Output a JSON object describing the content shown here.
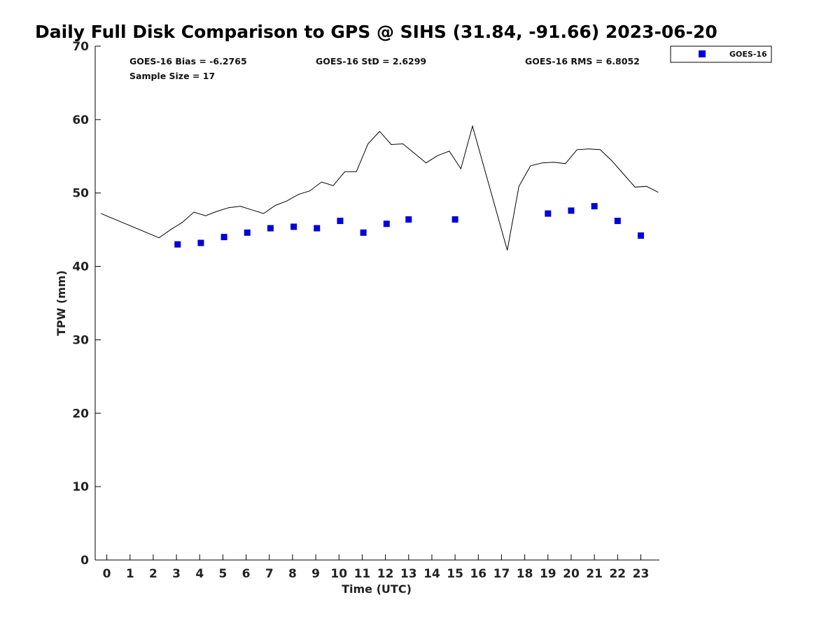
{
  "chart_data": {
    "type": "scatter",
    "title": "Daily Full Disk Comparison to GPS @ SIHS (31.84, -91.66) 2023-06-20",
    "xlabel": "Time (UTC)",
    "ylabel": "TPW (mm)",
    "xlim": [
      -0.5,
      23.8
    ],
    "ylim": [
      0,
      70
    ],
    "x_ticks": [
      0,
      1,
      2,
      3,
      4,
      5,
      6,
      7,
      8,
      9,
      10,
      11,
      12,
      13,
      14,
      15,
      16,
      17,
      18,
      19,
      20,
      21,
      22,
      23
    ],
    "y_ticks": [
      0,
      10,
      20,
      30,
      40,
      50,
      60,
      70
    ],
    "grid": false,
    "legend_position": "top-right-outside",
    "stats": {
      "bias": "GOES-16 Bias = -6.2765",
      "std": "GOES-16 StD = 2.6299",
      "rms": "GOES-16 RMS = 6.8052",
      "sample": "Sample Size = 17"
    },
    "series": [
      {
        "name": "GOES-16",
        "kind": "scatter",
        "marker": "square",
        "color": "#0000dd",
        "x": [
          3.05,
          4.05,
          5.05,
          6.05,
          7.05,
          8.05,
          9.05,
          10.05,
          11.05,
          12.05,
          13.0,
          15.0,
          19.0,
          20.0,
          21.0,
          22.0,
          23.0
        ],
        "y": [
          43.0,
          43.2,
          44.0,
          44.6,
          45.2,
          45.4,
          45.2,
          46.2,
          44.6,
          45.8,
          46.4,
          46.4,
          47.2,
          47.6,
          48.2,
          46.2,
          44.2
        ]
      },
      {
        "kind": "line",
        "color": "#000000",
        "x": [
          -0.25,
          2.25,
          2.75,
          3.25,
          3.75,
          4.25,
          4.75,
          5.25,
          5.75,
          6.25,
          6.75,
          7.25,
          7.75,
          8.25,
          8.75,
          9.25,
          9.75,
          10.25,
          10.75,
          11.25,
          11.75,
          12.25,
          12.75,
          13.25,
          13.75,
          14.25,
          14.75,
          15.25,
          15.75,
          17.25,
          17.75,
          18.25,
          18.75,
          19.25,
          19.75,
          20.25,
          20.75,
          21.25,
          21.75,
          22.25,
          22.75,
          23.25,
          23.75
        ],
        "y": [
          47.2,
          43.9,
          45.0,
          46.0,
          47.4,
          46.9,
          47.5,
          48.0,
          48.2,
          47.7,
          47.2,
          48.3,
          48.9,
          49.8,
          50.3,
          51.5,
          51.0,
          52.9,
          52.9,
          56.7,
          58.4,
          56.6,
          56.7,
          55.4,
          54.1,
          55.1,
          55.7,
          53.3,
          59.1,
          42.2,
          50.9,
          53.7,
          54.1,
          54.2,
          54.0,
          55.9,
          56.0,
          55.9,
          54.4,
          52.6,
          50.8,
          50.9,
          50.1
        ]
      }
    ]
  }
}
